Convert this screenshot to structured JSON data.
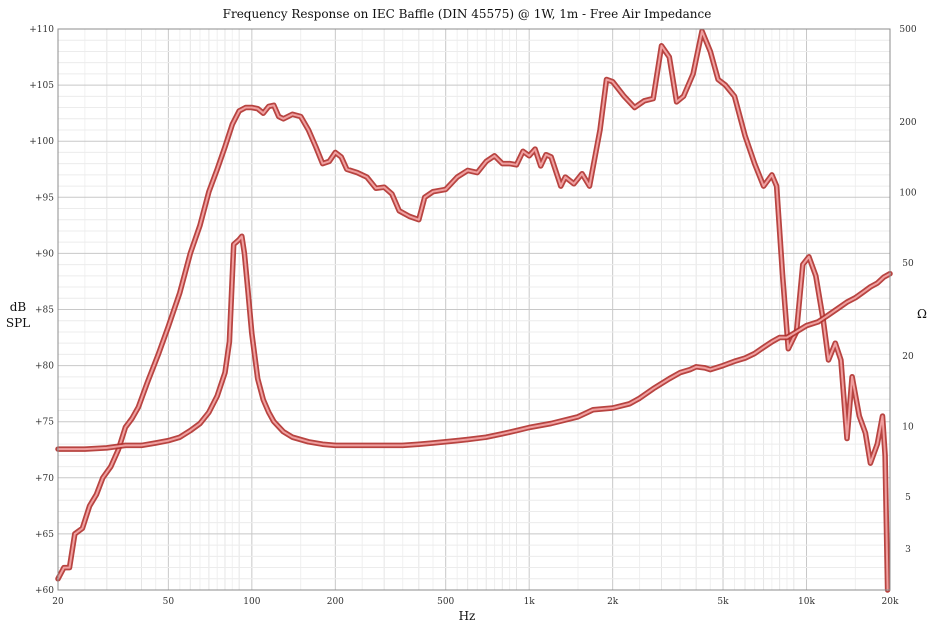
{
  "chart_data": {
    "type": "line",
    "title": "Frequency Response on IEC Baffle (DIN 45575) @ 1W, 1m - Free Air Impedance",
    "xlabel": "Hz",
    "ylabel_left_line1": "dB",
    "ylabel_left_line2": "SPL",
    "ylabel_right": "Ω",
    "x_scale": "log",
    "xlim": [
      20,
      20000
    ],
    "ylim_left": [
      60,
      110
    ],
    "ylim_right": [
      2,
      500
    ],
    "y_right_scale": "log",
    "grid": true,
    "x_ticks": [
      {
        "value": 20,
        "label": "20"
      },
      {
        "value": 50,
        "label": "50"
      },
      {
        "value": 100,
        "label": "100"
      },
      {
        "value": 200,
        "label": "200"
      },
      {
        "value": 500,
        "label": "500"
      },
      {
        "value": 1000,
        "label": "1k"
      },
      {
        "value": 2000,
        "label": "2k"
      },
      {
        "value": 5000,
        "label": "5k"
      },
      {
        "value": 10000,
        "label": "10k"
      },
      {
        "value": 20000,
        "label": "20k"
      }
    ],
    "y_left_ticks": [
      {
        "value": 60,
        "label": "+60"
      },
      {
        "value": 65,
        "label": "+65"
      },
      {
        "value": 70,
        "label": "+70"
      },
      {
        "value": 75,
        "label": "+75"
      },
      {
        "value": 80,
        "label": "+80"
      },
      {
        "value": 85,
        "label": "+85"
      },
      {
        "value": 90,
        "label": "+90"
      },
      {
        "value": 95,
        "label": "+95"
      },
      {
        "value": 100,
        "label": "+100"
      },
      {
        "value": 105,
        "label": "+105"
      },
      {
        "value": 110,
        "label": "+110"
      }
    ],
    "y_right_ticks": [
      {
        "value": 3,
        "label": "3"
      },
      {
        "value": 5,
        "label": "5"
      },
      {
        "value": 10,
        "label": "10"
      },
      {
        "value": 20,
        "label": "20"
      },
      {
        "value": 50,
        "label": "50"
      },
      {
        "value": 100,
        "label": "100"
      },
      {
        "value": 200,
        "label": "200"
      },
      {
        "value": 500,
        "label": "500"
      }
    ],
    "series": [
      {
        "axis": "left",
        "color": "#c0302b",
        "points": [
          [
            20,
            61.0
          ],
          [
            21,
            62.0
          ],
          [
            22,
            62.0
          ],
          [
            23,
            65.0
          ],
          [
            24.5,
            65.5
          ],
          [
            26,
            67.5
          ],
          [
            27.5,
            68.5
          ],
          [
            29,
            70.0
          ],
          [
            31,
            71.0
          ],
          [
            33,
            72.5
          ],
          [
            35,
            74.5
          ],
          [
            37,
            75.3
          ],
          [
            39,
            76.3
          ],
          [
            42,
            78.5
          ],
          [
            46,
            81.0
          ],
          [
            50,
            83.5
          ],
          [
            55,
            86.5
          ],
          [
            60,
            90.0
          ],
          [
            65,
            92.5
          ],
          [
            70,
            95.5
          ],
          [
            75,
            97.5
          ],
          [
            80,
            99.5
          ],
          [
            85,
            101.5
          ],
          [
            90,
            102.7
          ],
          [
            95,
            103.0
          ],
          [
            100,
            103.0
          ],
          [
            105,
            102.9
          ],
          [
            110,
            102.5
          ],
          [
            115,
            103.1
          ],
          [
            120,
            103.2
          ],
          [
            125,
            102.2
          ],
          [
            130,
            102.0
          ],
          [
            140,
            102.4
          ],
          [
            150,
            102.2
          ],
          [
            160,
            101.0
          ],
          [
            170,
            99.5
          ],
          [
            180,
            98.0
          ],
          [
            190,
            98.2
          ],
          [
            200,
            99.0
          ],
          [
            210,
            98.6
          ],
          [
            220,
            97.5
          ],
          [
            240,
            97.2
          ],
          [
            260,
            96.8
          ],
          [
            280,
            95.8
          ],
          [
            300,
            95.9
          ],
          [
            320,
            95.3
          ],
          [
            340,
            93.8
          ],
          [
            370,
            93.3
          ],
          [
            400,
            93.0
          ],
          [
            420,
            95.0
          ],
          [
            450,
            95.5
          ],
          [
            500,
            95.7
          ],
          [
            550,
            96.8
          ],
          [
            600,
            97.4
          ],
          [
            650,
            97.2
          ],
          [
            700,
            98.2
          ],
          [
            750,
            98.7
          ],
          [
            800,
            98.0
          ],
          [
            850,
            98.0
          ],
          [
            900,
            97.9
          ],
          [
            950,
            99.1
          ],
          [
            1000,
            98.7
          ],
          [
            1050,
            99.3
          ],
          [
            1100,
            97.8
          ],
          [
            1150,
            98.8
          ],
          [
            1200,
            98.6
          ],
          [
            1300,
            96.0
          ],
          [
            1350,
            96.8
          ],
          [
            1450,
            96.2
          ],
          [
            1550,
            97.1
          ],
          [
            1650,
            96.0
          ],
          [
            1800,
            101.0
          ],
          [
            1900,
            105.5
          ],
          [
            2000,
            105.3
          ],
          [
            2200,
            104.0
          ],
          [
            2400,
            103.0
          ],
          [
            2600,
            103.6
          ],
          [
            2800,
            103.8
          ],
          [
            3000,
            108.5
          ],
          [
            3200,
            107.5
          ],
          [
            3400,
            103.5
          ],
          [
            3600,
            104.0
          ],
          [
            3900,
            106.0
          ],
          [
            4200,
            109.8
          ],
          [
            4500,
            108.0
          ],
          [
            4800,
            105.5
          ],
          [
            5100,
            105.0
          ],
          [
            5500,
            104.0
          ],
          [
            6000,
            100.5
          ],
          [
            6500,
            98.0
          ],
          [
            7000,
            96.0
          ],
          [
            7500,
            97.0
          ],
          [
            7800,
            96.0
          ],
          [
            8200,
            88.0
          ],
          [
            8600,
            81.5
          ],
          [
            9200,
            83.0
          ],
          [
            9700,
            89.0
          ],
          [
            10200,
            89.7
          ],
          [
            10800,
            88.0
          ],
          [
            11500,
            84.0
          ],
          [
            12000,
            80.5
          ],
          [
            12700,
            82.0
          ],
          [
            13300,
            80.5
          ],
          [
            14000,
            73.5
          ],
          [
            14600,
            79.0
          ],
          [
            15500,
            75.5
          ],
          [
            16300,
            74.0
          ],
          [
            17000,
            71.3
          ],
          [
            18000,
            73.0
          ],
          [
            18800,
            75.5
          ],
          [
            19200,
            72.0
          ],
          [
            19600,
            60.0
          ]
        ]
      },
      {
        "axis": "right",
        "color": "#c0302b",
        "points": [
          [
            20,
            8.0
          ],
          [
            25,
            8.0
          ],
          [
            30,
            8.1
          ],
          [
            35,
            8.3
          ],
          [
            40,
            8.3
          ],
          [
            45,
            8.5
          ],
          [
            50,
            8.7
          ],
          [
            55,
            9.0
          ],
          [
            60,
            9.6
          ],
          [
            65,
            10.3
          ],
          [
            70,
            11.5
          ],
          [
            75,
            13.5
          ],
          [
            80,
            17.0
          ],
          [
            83,
            23.0
          ],
          [
            86,
            60.0
          ],
          [
            90,
            63.0
          ],
          [
            92,
            65.0
          ],
          [
            94,
            55.0
          ],
          [
            97,
            37.0
          ],
          [
            100,
            25.0
          ],
          [
            105,
            16.0
          ],
          [
            110,
            13.0
          ],
          [
            115,
            11.5
          ],
          [
            120,
            10.5
          ],
          [
            130,
            9.5
          ],
          [
            140,
            9.0
          ],
          [
            160,
            8.6
          ],
          [
            180,
            8.4
          ],
          [
            200,
            8.3
          ],
          [
            250,
            8.3
          ],
          [
            300,
            8.3
          ],
          [
            350,
            8.3
          ],
          [
            400,
            8.4
          ],
          [
            450,
            8.5
          ],
          [
            500,
            8.6
          ],
          [
            550,
            8.7
          ],
          [
            600,
            8.8
          ],
          [
            700,
            9.0
          ],
          [
            800,
            9.3
          ],
          [
            900,
            9.6
          ],
          [
            1000,
            9.9
          ],
          [
            1200,
            10.3
          ],
          [
            1500,
            11.0
          ],
          [
            1700,
            11.8
          ],
          [
            2000,
            12.0
          ],
          [
            2300,
            12.5
          ],
          [
            2500,
            13.2
          ],
          [
            2800,
            14.5
          ],
          [
            3200,
            16.0
          ],
          [
            3500,
            17.0
          ],
          [
            3800,
            17.5
          ],
          [
            4000,
            18.0
          ],
          [
            4300,
            17.8
          ],
          [
            4500,
            17.5
          ],
          [
            5000,
            18.2
          ],
          [
            5500,
            19.0
          ],
          [
            6000,
            19.6
          ],
          [
            6500,
            20.5
          ],
          [
            7000,
            21.8
          ],
          [
            7500,
            23.0
          ],
          [
            8000,
            24.0
          ],
          [
            8500,
            24.0
          ],
          [
            9000,
            25.0
          ],
          [
            10000,
            27.0
          ],
          [
            11000,
            28.0
          ],
          [
            12000,
            30.0
          ],
          [
            13000,
            32.0
          ],
          [
            14000,
            34.0
          ],
          [
            15000,
            35.5
          ],
          [
            16000,
            37.5
          ],
          [
            17000,
            39.5
          ],
          [
            18000,
            41.0
          ],
          [
            19000,
            43.5
          ],
          [
            20000,
            45.0
          ]
        ]
      }
    ]
  }
}
